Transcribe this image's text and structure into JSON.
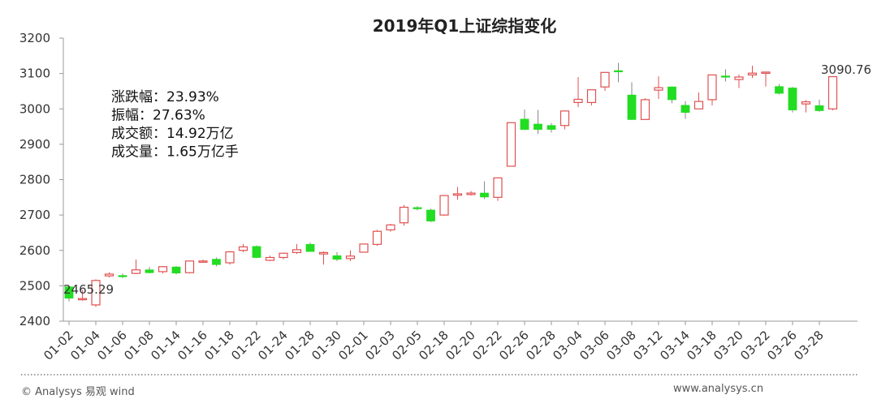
{
  "chart_data": {
    "type": "candlestick",
    "title": "2019年Q1上证综指变化",
    "xlabel": "",
    "ylabel": "",
    "ylim": [
      2400,
      3200
    ],
    "yticks": [
      "2400",
      "2500",
      "2600",
      "2700",
      "2800",
      "2900",
      "3000",
      "3100",
      "3200"
    ],
    "grid": false,
    "legend": "none",
    "up_color": "#e05050",
    "down_color": "#22dd22",
    "dates": [
      "01-02",
      "01-03",
      "01-04",
      "01-07",
      "01-08",
      "01-09",
      "01-10",
      "01-11",
      "01-14",
      "01-15",
      "01-16",
      "01-17",
      "01-18",
      "01-21",
      "01-22",
      "01-23",
      "01-24",
      "01-25",
      "01-28",
      "01-29",
      "01-30",
      "01-31",
      "02-01",
      "02-11",
      "02-12",
      "02-13",
      "02-14",
      "02-15",
      "02-18",
      "02-19",
      "02-20",
      "02-21",
      "02-22",
      "02-25",
      "02-26",
      "02-27",
      "02-28",
      "03-01",
      "03-04",
      "03-05",
      "03-06",
      "03-07",
      "03-08",
      "03-11",
      "03-12",
      "03-13",
      "03-14",
      "03-15",
      "03-18",
      "03-19",
      "03-20",
      "03-21",
      "03-22",
      "03-25",
      "03-26",
      "03-27",
      "03-28",
      "03-29"
    ],
    "xtick_labels": [
      "01-02",
      "01-04",
      "01-06",
      "01-08",
      "01-14",
      "01-16",
      "01-18",
      "01-22",
      "01-24",
      "01-28",
      "01-30",
      "02-01",
      "02-03",
      "02-05",
      "02-18",
      "02-20",
      "02-22",
      "02-26",
      "02-28",
      "03-04",
      "03-06",
      "03-08",
      "03-12",
      "03-14",
      "03-18",
      "03-20",
      "03-22",
      "03-26",
      "03-28"
    ],
    "ohlc": [
      [
        2497,
        2500,
        2456,
        2465
      ],
      [
        2463,
        2488,
        2458,
        2464
      ],
      [
        2446,
        2518,
        2440,
        2515
      ],
      [
        2528,
        2538,
        2524,
        2533
      ],
      [
        2529,
        2535,
        2522,
        2526
      ],
      [
        2535,
        2574,
        2533,
        2545
      ],
      [
        2545,
        2553,
        2535,
        2537
      ],
      [
        2540,
        2556,
        2535,
        2554
      ],
      [
        2553,
        2556,
        2532,
        2536
      ],
      [
        2537,
        2571,
        2535,
        2570
      ],
      [
        2567,
        2574,
        2565,
        2570
      ],
      [
        2575,
        2580,
        2555,
        2560
      ],
      [
        2565,
        2598,
        2560,
        2596
      ],
      [
        2600,
        2618,
        2595,
        2610
      ],
      [
        2611,
        2614,
        2578,
        2580
      ],
      [
        2572,
        2585,
        2570,
        2580
      ],
      [
        2580,
        2593,
        2575,
        2592
      ],
      [
        2594,
        2618,
        2590,
        2602
      ],
      [
        2617,
        2622,
        2596,
        2597
      ],
      [
        2590,
        2597,
        2560,
        2594
      ],
      [
        2585,
        2595,
        2570,
        2575
      ],
      [
        2577,
        2600,
        2570,
        2584
      ],
      [
        2595,
        2618,
        2594,
        2618
      ],
      [
        2617,
        2658,
        2613,
        2654
      ],
      [
        2658,
        2675,
        2653,
        2672
      ],
      [
        2678,
        2728,
        2670,
        2722
      ],
      [
        2721,
        2725,
        2713,
        2720
      ],
      [
        2714,
        2718,
        2680,
        2683
      ],
      [
        2700,
        2756,
        2698,
        2755
      ],
      [
        2756,
        2779,
        2743,
        2760
      ],
      [
        2758,
        2768,
        2755,
        2762
      ],
      [
        2762,
        2795,
        2745,
        2751
      ],
      [
        2750,
        2806,
        2740,
        2805
      ],
      [
        2838,
        2962,
        2838,
        2961
      ],
      [
        2971,
        2998,
        2940,
        2942
      ],
      [
        2957,
        2997,
        2929,
        2942
      ],
      [
        2953,
        2960,
        2933,
        2942
      ],
      [
        2953,
        2995,
        2942,
        2994
      ],
      [
        3018,
        3090,
        3005,
        3027
      ],
      [
        3018,
        3054,
        3010,
        3054
      ],
      [
        3062,
        3103,
        3051,
        3103
      ],
      [
        3108,
        3130,
        3075,
        3106
      ],
      [
        3039,
        3075,
        2969,
        2970
      ],
      [
        2970,
        3030,
        2970,
        3026
      ],
      [
        3053,
        3092,
        3028,
        3060
      ],
      [
        3062,
        3063,
        3016,
        3026
      ],
      [
        3010,
        3022,
        2972,
        2990
      ],
      [
        3000,
        3046,
        3000,
        3021
      ],
      [
        3026,
        3096,
        3010,
        3096
      ],
      [
        3093,
        3112,
        3077,
        3091
      ],
      [
        3083,
        3097,
        3059,
        3090
      ],
      [
        3096,
        3122,
        3087,
        3101
      ],
      [
        3101,
        3103,
        3063,
        3104
      ],
      [
        3063,
        3070,
        3041,
        3044
      ],
      [
        3059,
        3062,
        2990,
        2997
      ],
      [
        3014,
        3025,
        2990,
        3020
      ],
      [
        3009,
        3026,
        2992,
        2995
      ],
      [
        3000,
        3090,
        2996,
        3091
      ]
    ],
    "annotations": {
      "start_low": "2465.29",
      "end_close": "3090.76"
    },
    "stats": [
      {
        "label": "涨跌幅",
        "value": "23.93%"
      },
      {
        "label": "振幅",
        "value": "27.63%"
      },
      {
        "label": "成交额",
        "value": "14.92万亿"
      },
      {
        "label": "成交量",
        "value": "1.65万亿手"
      }
    ]
  },
  "footer": {
    "copyright": "© Analysys 易观 wind",
    "url": "www.analysys.cn"
  }
}
